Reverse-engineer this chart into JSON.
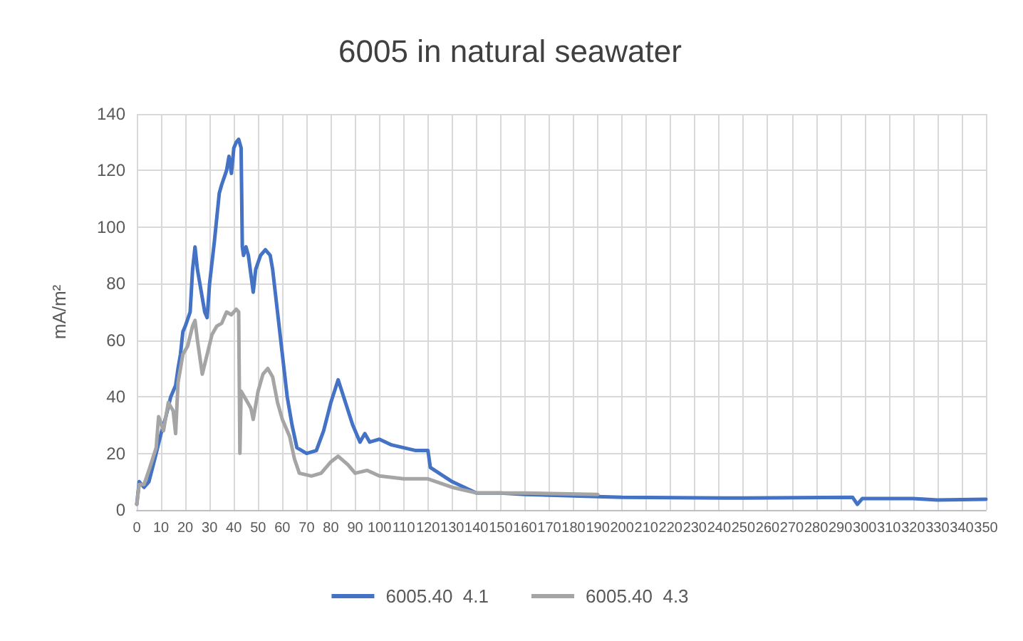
{
  "chart_data": {
    "type": "line",
    "title": "6005 in natural seawater",
    "ylabel": "mA/m²",
    "xlim": [
      0,
      350
    ],
    "xticks": [
      0,
      10,
      20,
      30,
      40,
      50,
      60,
      70,
      80,
      90,
      100,
      110,
      120,
      130,
      140,
      150,
      160,
      170,
      180,
      190,
      200,
      210,
      220,
      230,
      240,
      250,
      260,
      270,
      280,
      290,
      300,
      310,
      320,
      330,
      340,
      350
    ],
    "ylim": [
      0,
      140
    ],
    "yticks": [
      0,
      20,
      40,
      60,
      80,
      100,
      120,
      140
    ],
    "grid": true,
    "legend": "bottom",
    "marker": "none",
    "series": [
      {
        "name": "6005.40  4.1",
        "color": "#4472c4",
        "x": [
          0,
          1,
          3,
          5,
          8,
          10,
          12,
          14,
          16,
          17,
          18,
          19,
          20,
          22,
          23,
          24,
          25,
          27,
          28,
          29,
          30,
          32,
          34,
          35,
          37,
          38,
          39,
          40,
          41,
          42,
          43,
          43.5,
          44,
          45,
          46,
          48,
          49,
          51,
          53,
          55,
          56,
          58,
          60,
          62,
          64,
          66,
          70,
          74,
          77,
          80,
          83,
          86,
          89,
          92,
          94,
          96,
          100,
          105,
          110,
          115,
          120,
          121,
          130,
          140,
          150,
          160,
          180,
          200,
          250,
          295,
          297,
          299,
          320,
          330,
          350
        ],
        "values": [
          2,
          10,
          8,
          10,
          20,
          27,
          33,
          40,
          44,
          50,
          55,
          63,
          65,
          70,
          85,
          93,
          85,
          75,
          70,
          68,
          80,
          95,
          112,
          115,
          120,
          125,
          119,
          128,
          130,
          131,
          128,
          93,
          90,
          93,
          90,
          77,
          85,
          90,
          92,
          90,
          85,
          70,
          55,
          40,
          30,
          22,
          20,
          21,
          28,
          38,
          46,
          38,
          30,
          24,
          27,
          24,
          25,
          23,
          22,
          21,
          21,
          15,
          10,
          6,
          6,
          5.5,
          5,
          4.5,
          4.2,
          4.5,
          2,
          4,
          4,
          3.5,
          3.8
        ]
      },
      {
        "name": "6005.40  4.3",
        "color": "#a5a5a5",
        "x": [
          0,
          1,
          3,
          5,
          8,
          9,
          11,
          13,
          15,
          16,
          17,
          19,
          21,
          23,
          24,
          25,
          27,
          29,
          31,
          33,
          35,
          37,
          39,
          41,
          42,
          42.5,
          43,
          45,
          47,
          48,
          50,
          52,
          54,
          56,
          58,
          60,
          63,
          65,
          67,
          72,
          76,
          80,
          83,
          87,
          90,
          95,
          100,
          110,
          120,
          130,
          140,
          160,
          190
        ],
        "values": [
          2,
          9,
          9,
          14,
          22,
          33,
          28,
          38,
          35,
          27,
          45,
          55,
          58,
          65,
          67,
          60,
          48,
          55,
          62,
          65,
          66,
          70,
          69,
          71,
          70,
          20,
          42,
          39,
          36,
          32,
          42,
          48,
          50,
          47,
          38,
          32,
          26,
          18,
          13,
          12,
          13,
          17,
          19,
          16,
          13,
          14,
          12,
          11,
          11,
          8,
          6,
          6,
          5.5
        ]
      }
    ]
  }
}
